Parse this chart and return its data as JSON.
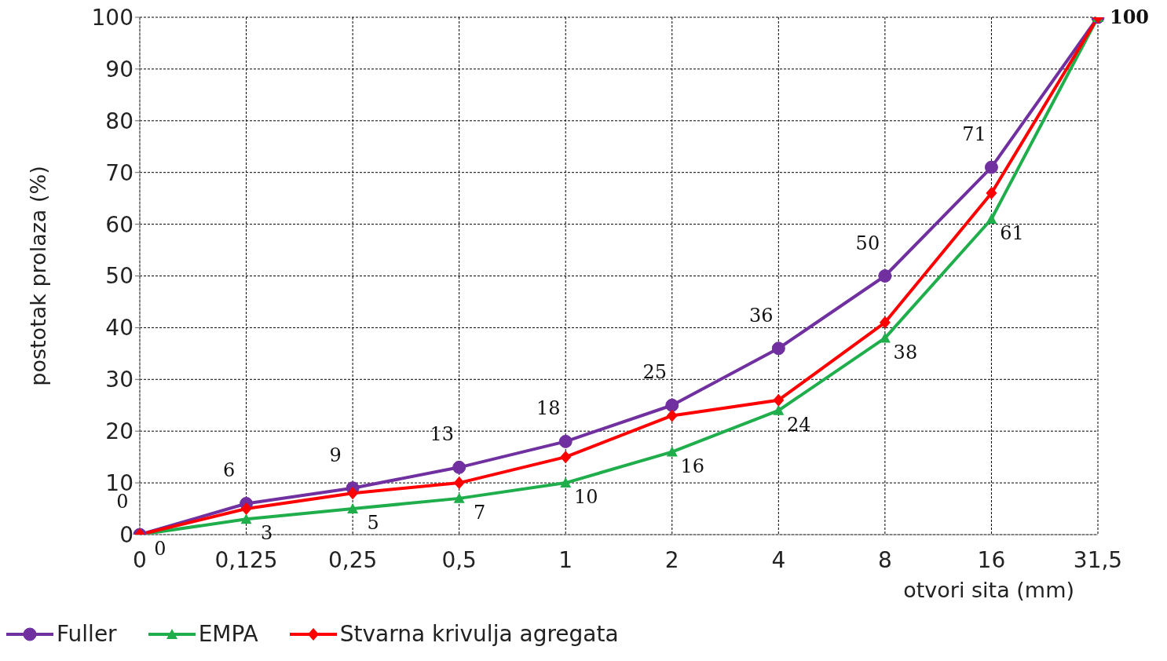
{
  "chart_data": {
    "type": "line",
    "xlabel": "otvori sita (mm)",
    "ylabel": "postotak prolaza (%)",
    "categories": [
      "0",
      "0,125",
      "0,25",
      "0,5",
      "1",
      "2",
      "4",
      "8",
      "16",
      "31,5"
    ],
    "ylim": [
      0,
      100
    ],
    "yticks": [
      0,
      10,
      20,
      30,
      40,
      50,
      60,
      70,
      80,
      90,
      100
    ],
    "grid": true,
    "legend": "bottom left",
    "line_style": "solid",
    "series": [
      {
        "name": "Fuller",
        "color": "#7030a0",
        "marker": "circle",
        "values": [
          0,
          6,
          9,
          13,
          18,
          25,
          36,
          50,
          71,
          100
        ],
        "value_labels": [
          "0",
          "6",
          "9",
          "13",
          "18",
          "25",
          "36",
          "50",
          "71",
          null
        ]
      },
      {
        "name": "EMPA",
        "color": "#1fae4b",
        "marker": "triangle",
        "values": [
          0,
          3,
          5,
          7,
          10,
          16,
          24,
          38,
          61,
          100
        ],
        "value_labels": [
          "0",
          "3",
          "5",
          "7",
          "10",
          "16",
          "24",
          "38",
          "61",
          null
        ]
      },
      {
        "name": "Stvarna krivulja agregata",
        "color": "#ff0000",
        "marker": "diamond",
        "values": [
          0,
          5,
          8,
          10,
          15,
          23,
          26,
          41,
          66,
          100
        ],
        "value_labels": [
          null,
          null,
          null,
          null,
          null,
          null,
          null,
          null,
          null,
          "100"
        ]
      }
    ]
  }
}
